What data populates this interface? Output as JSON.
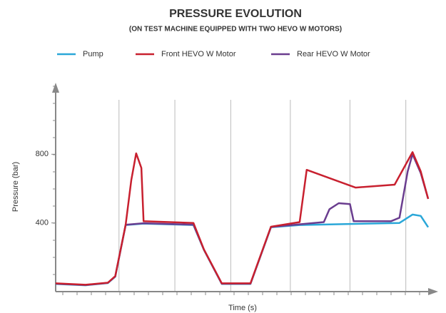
{
  "chart_data": {
    "type": "line",
    "title": "PRESSURE EVOLUTION",
    "subtitle": "(ON TEST MACHINE EQUIPPED WITH TWO HEVO W MOTORS)",
    "x_label": "Time (s)",
    "y_label": "Pressure (bar)",
    "xlim": [
      0,
      100
    ],
    "ylim": [
      0,
      1200
    ],
    "yticks": [
      400,
      800
    ],
    "xgrid": [
      17,
      32,
      47,
      63,
      79,
      94
    ],
    "grid": true,
    "legend": "top",
    "series": [
      {
        "name": "Pump",
        "color": "#2aa7d8",
        "x": [
          0,
          8,
          14,
          16,
          18.8,
          23.6,
          37,
          39.8,
          44.6,
          52.3,
          57.8,
          65.5,
          92.3,
          95.8,
          98,
          100
        ],
        "values": [
          45,
          37,
          50,
          87,
          388,
          396,
          388,
          243,
          45,
          45,
          375,
          388,
          400,
          449,
          441,
          375
        ]
      },
      {
        "name": "Front HEVO W Motor",
        "color": "#c8202f",
        "x": [
          0,
          8,
          14,
          16,
          18.8,
          20.3,
          21.6,
          23,
          23.6,
          37,
          39.8,
          44.6,
          52.3,
          57.8,
          65.5,
          67.4,
          80.5,
          91,
          95.8,
          98,
          100
        ],
        "values": [
          48,
          40,
          52,
          90,
          390,
          650,
          805,
          720,
          410,
          400,
          245,
          48,
          48,
          378,
          405,
          709,
          606,
          623,
          812,
          700,
          540
        ]
      },
      {
        "name": "Rear HEVO W Motor",
        "color": "#6a3d8f",
        "x": [
          0,
          8,
          14,
          16,
          18.8,
          23.6,
          37,
          39.8,
          44.6,
          52.3,
          57.8,
          65.5,
          72,
          73.5,
          76,
          79,
          80,
          90,
          92.3,
          94.5,
          95.8,
          98,
          100
        ],
        "values": [
          46,
          38,
          51,
          88,
          389,
          398,
          390,
          244,
          46,
          46,
          376,
          392,
          405,
          480,
          515,
          510,
          410,
          410,
          430,
          700,
          800,
          690,
          540
        ]
      }
    ]
  }
}
